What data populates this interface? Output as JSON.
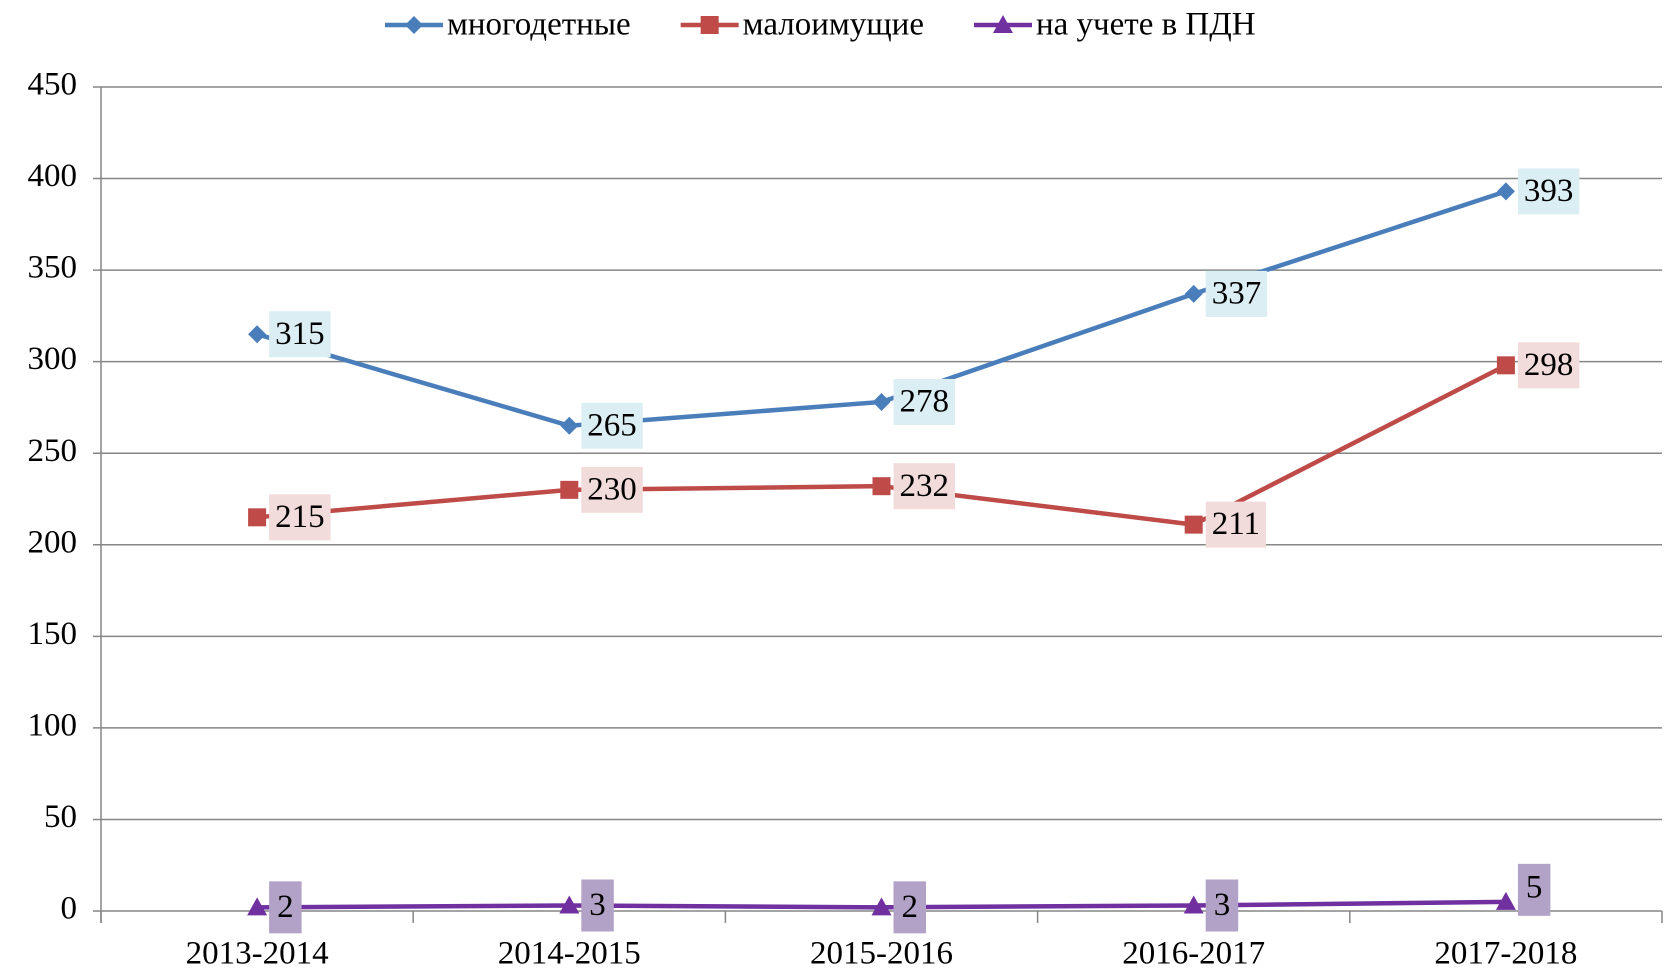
{
  "chart_data": {
    "type": "line",
    "categories": [
      "2013-2014",
      "2014-2015",
      "2015-2016",
      "2016-2017",
      "2017-2018"
    ],
    "series": [
      {
        "name": "многодетные",
        "color": "#4a7ebb",
        "marker": "diamond",
        "label_color": "#dbeef4",
        "values": [
          315,
          265,
          278,
          337,
          393
        ]
      },
      {
        "name": "малоимущие",
        "color": "#be4b48",
        "marker": "square",
        "label_color": "#f2dcdb",
        "values": [
          215,
          230,
          232,
          211,
          298
        ]
      },
      {
        "name": "на учете в ПДН",
        "color": "#7030a0",
        "marker": "triangle",
        "label_color": "#b3a2c7",
        "values": [
          2,
          3,
          2,
          3,
          5
        ]
      }
    ],
    "ylim": [
      0,
      450
    ],
    "yticks": [
      0,
      50,
      100,
      150,
      200,
      250,
      300,
      350,
      400,
      450
    ],
    "grid": true,
    "legend": "top",
    "data_labels": true
  }
}
